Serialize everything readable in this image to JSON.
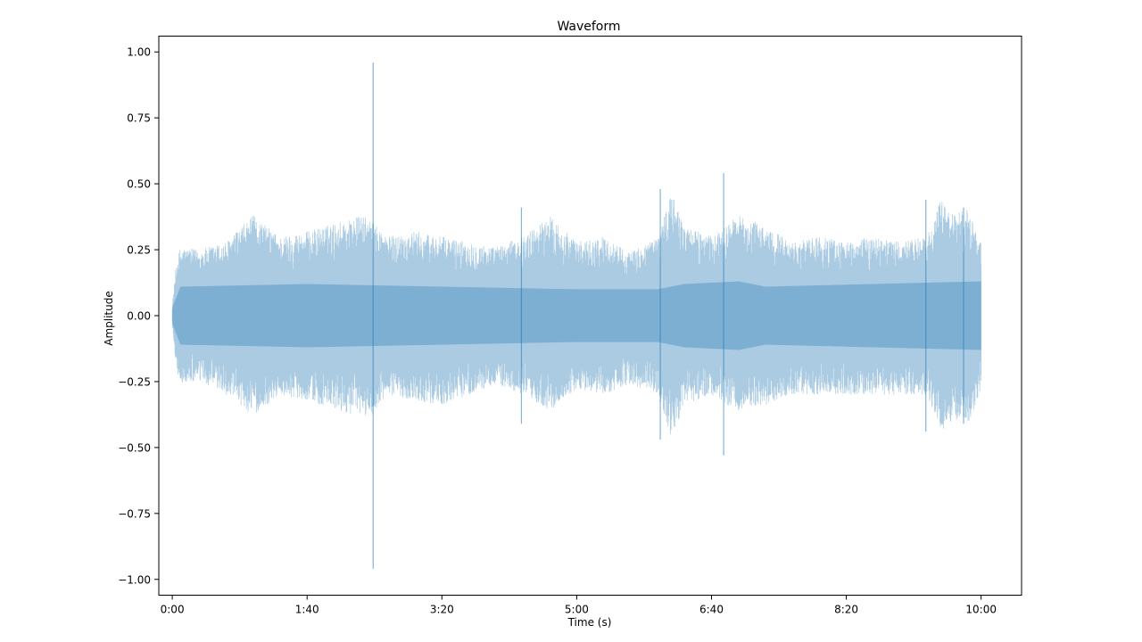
{
  "chart_data": {
    "type": "area",
    "title": "Waveform",
    "xlabel": "Time (s)",
    "ylabel": "Amplitude",
    "xlim": [
      -10,
      630
    ],
    "ylim": [
      -1.06,
      1.06
    ],
    "x_ticks": [
      {
        "value": 0,
        "label": "0:00"
      },
      {
        "value": 100,
        "label": "1:40"
      },
      {
        "value": 200,
        "label": "3:20"
      },
      {
        "value": 300,
        "label": "5:00"
      },
      {
        "value": 400,
        "label": "6:40"
      },
      {
        "value": 500,
        "label": "8:20"
      },
      {
        "value": 600,
        "label": "10:00"
      }
    ],
    "y_ticks": [
      {
        "value": 1.0,
        "label": "1.00"
      },
      {
        "value": 0.75,
        "label": "0.75"
      },
      {
        "value": 0.5,
        "label": "0.50"
      },
      {
        "value": 0.25,
        "label": "0.25"
      },
      {
        "value": 0.0,
        "label": "0.00"
      },
      {
        "value": -0.25,
        "label": "−0.25"
      },
      {
        "value": -0.5,
        "label": "−0.50"
      },
      {
        "value": -0.75,
        "label": "−0.75"
      },
      {
        "value": -1.0,
        "label": "−1.00"
      }
    ],
    "grid": false,
    "series_color": "#1f77b4",
    "duration_seconds": 600,
    "envelope": {
      "x": [
        0,
        3,
        6,
        20,
        40,
        60,
        80,
        100,
        120,
        140,
        148,
        160,
        180,
        200,
        220,
        240,
        260,
        280,
        300,
        320,
        340,
        360,
        370,
        380,
        400,
        410,
        420,
        440,
        460,
        480,
        500,
        520,
        540,
        560,
        570,
        580,
        590,
        600
      ],
      "upper": [
        0.04,
        0.2,
        0.26,
        0.25,
        0.28,
        0.38,
        0.3,
        0.32,
        0.35,
        0.38,
        0.36,
        0.3,
        0.32,
        0.3,
        0.28,
        0.26,
        0.3,
        0.38,
        0.28,
        0.3,
        0.24,
        0.3,
        0.47,
        0.34,
        0.3,
        0.34,
        0.38,
        0.34,
        0.28,
        0.3,
        0.28,
        0.3,
        0.28,
        0.3,
        0.44,
        0.38,
        0.41,
        0.28
      ],
      "lower": [
        -0.04,
        -0.2,
        -0.26,
        -0.25,
        -0.3,
        -0.38,
        -0.3,
        -0.32,
        -0.36,
        -0.38,
        -0.38,
        -0.3,
        -0.32,
        -0.34,
        -0.3,
        -0.26,
        -0.3,
        -0.36,
        -0.28,
        -0.3,
        -0.26,
        -0.3,
        -0.47,
        -0.34,
        -0.3,
        -0.34,
        -0.36,
        -0.34,
        -0.3,
        -0.3,
        -0.3,
        -0.3,
        -0.3,
        -0.3,
        -0.44,
        -0.4,
        -0.41,
        -0.3
      ]
    },
    "rms_band": {
      "x": [
        0,
        6,
        100,
        200,
        300,
        360,
        380,
        420,
        440,
        600
      ],
      "upper": [
        0.03,
        0.11,
        0.12,
        0.11,
        0.1,
        0.1,
        0.12,
        0.13,
        0.11,
        0.13
      ],
      "lower": [
        -0.03,
        -0.11,
        -0.12,
        -0.11,
        -0.1,
        -0.1,
        -0.12,
        -0.13,
        -0.11,
        -0.13
      ]
    },
    "peaks": [
      {
        "x": 149,
        "max": 0.96,
        "min": -0.96
      },
      {
        "x": 409,
        "max": 0.54,
        "min": -0.53
      },
      {
        "x": 362,
        "max": 0.48,
        "min": -0.47
      },
      {
        "x": 259,
        "max": 0.41,
        "min": -0.41
      },
      {
        "x": 559,
        "max": 0.44,
        "min": -0.44
      },
      {
        "x": 587,
        "max": 0.41,
        "min": -0.41
      }
    ]
  }
}
